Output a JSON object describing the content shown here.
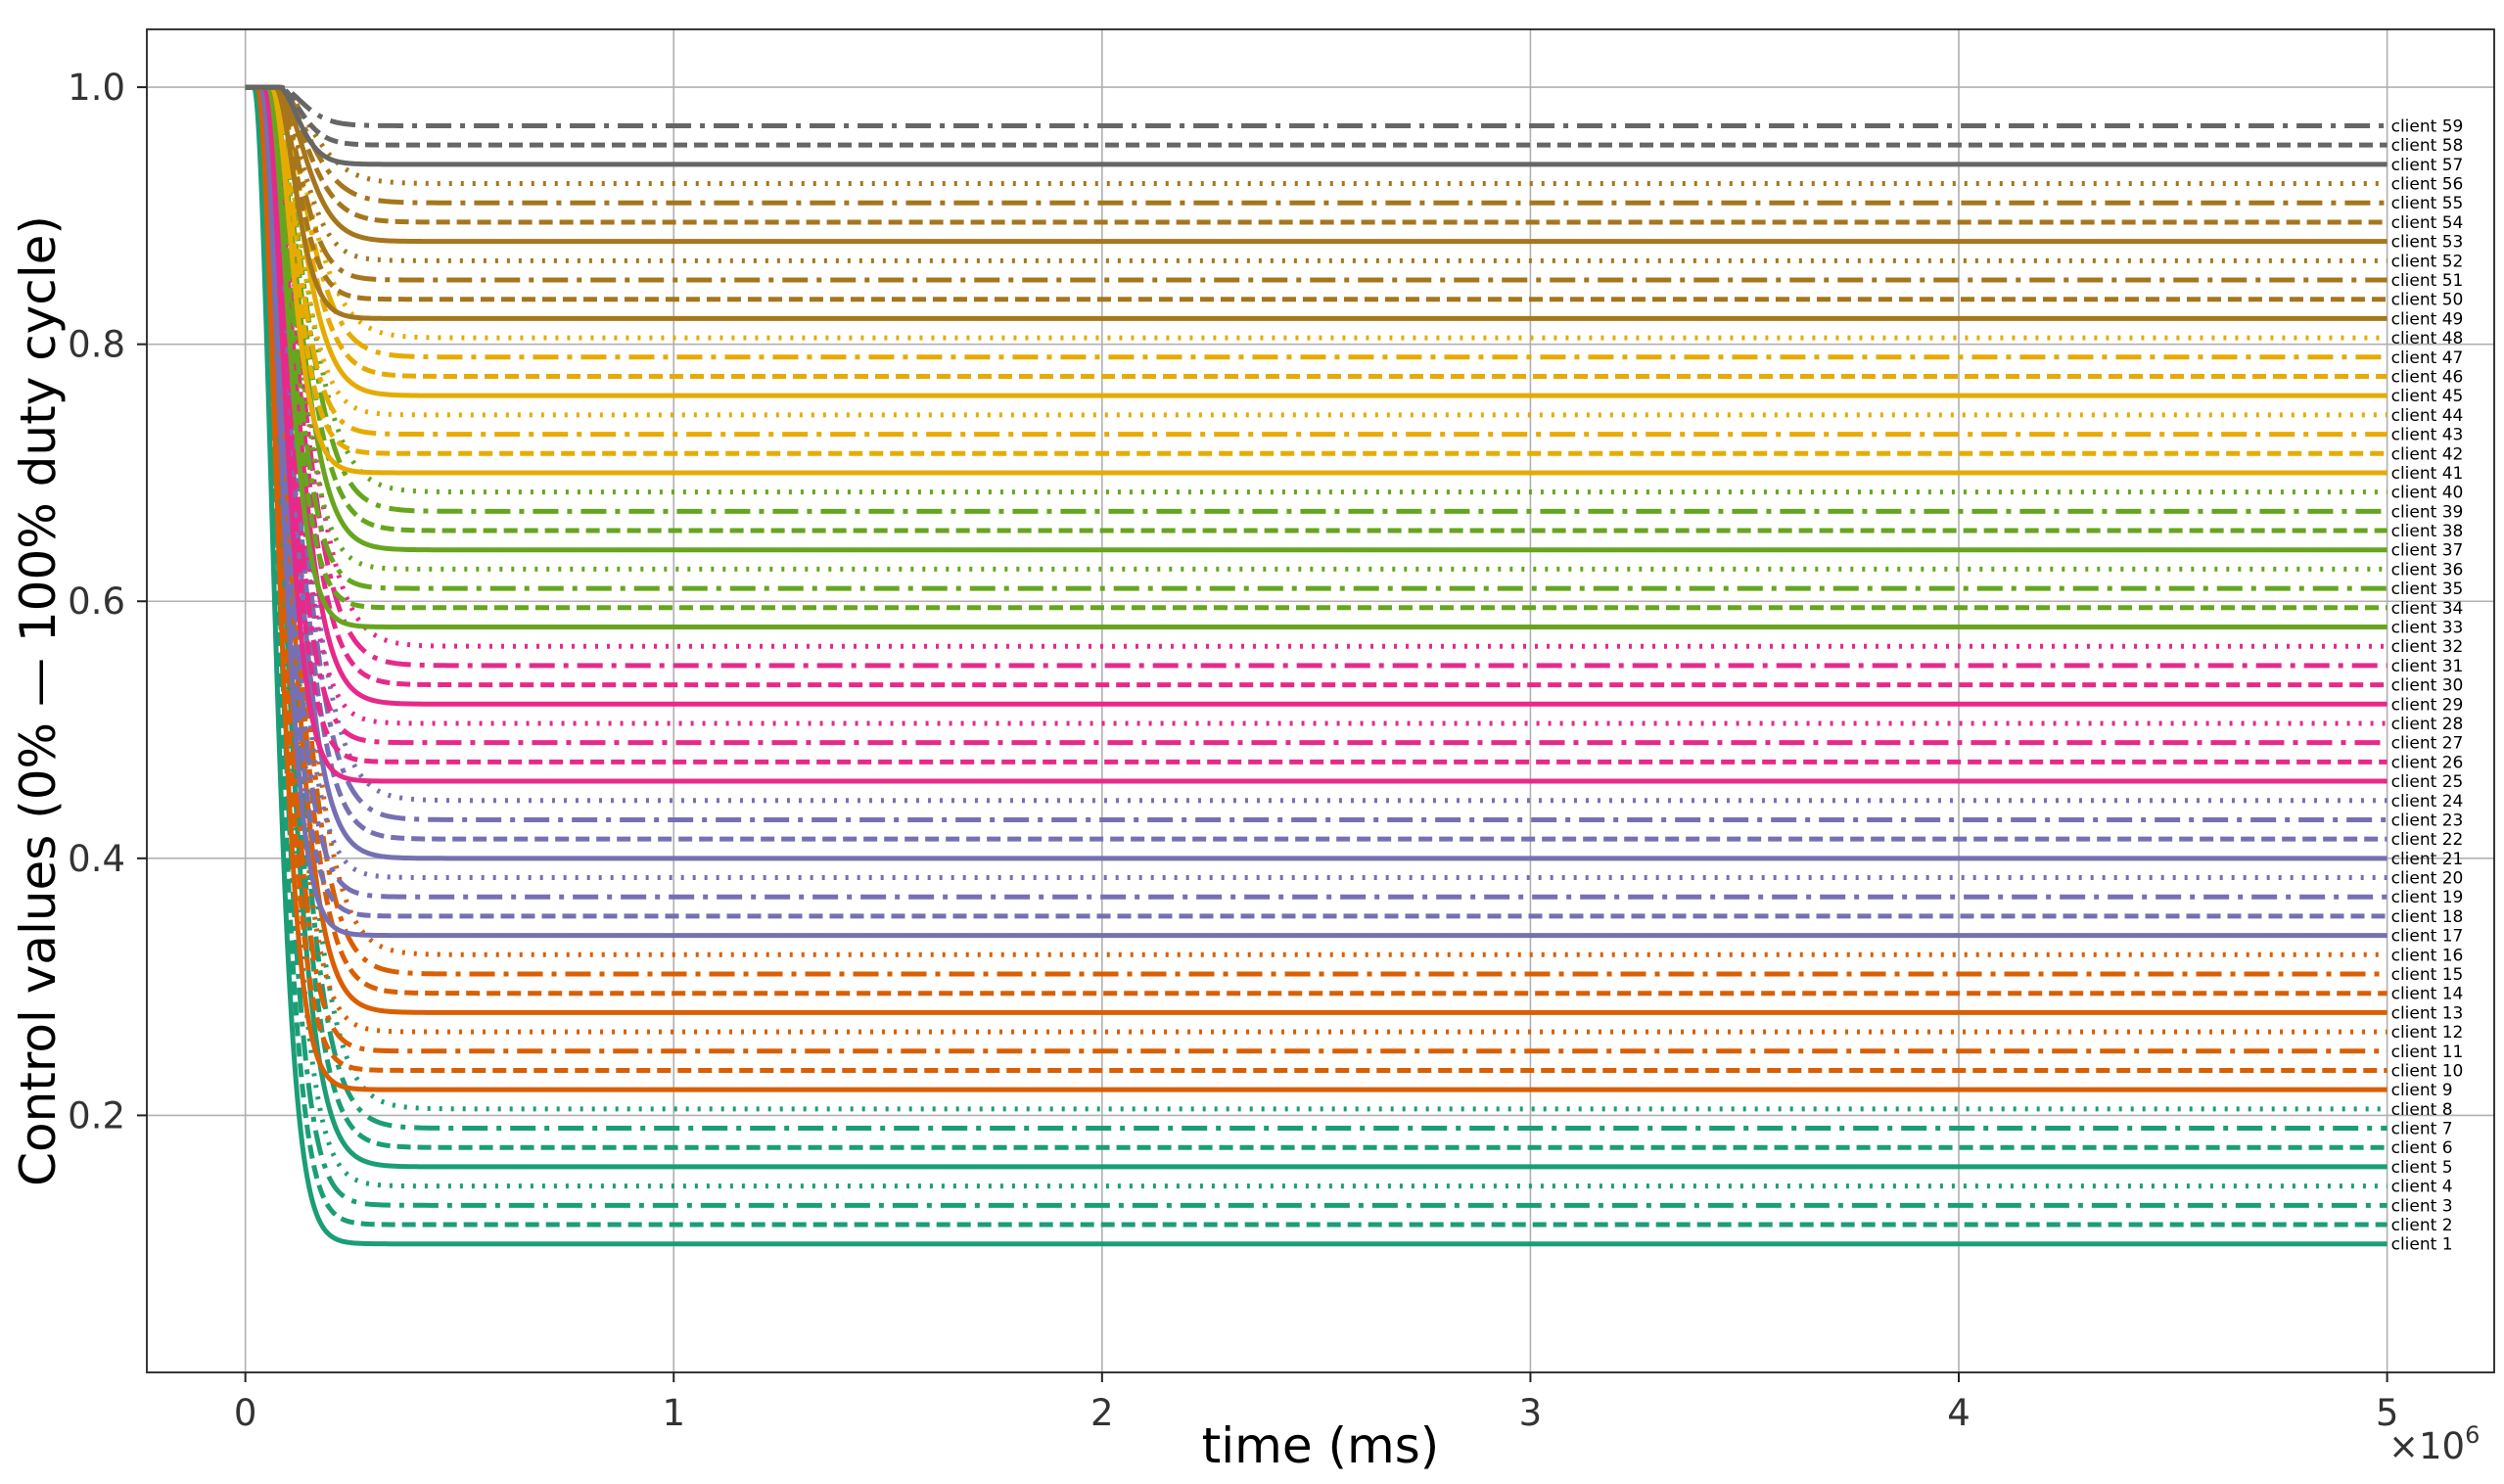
{
  "chart_data": {
    "type": "line",
    "xlabel": "time (ms)",
    "ylabel": "Control values (0% — 100% duty cycle)",
    "x_multiplier_label": "×10",
    "x_multiplier_exp": "6",
    "x_scale": 1000000,
    "xlim": [
      -0.23,
      5.25
    ],
    "ylim": [
      0.0,
      1.045
    ],
    "x_ticks": [
      0,
      1,
      2,
      3,
      4,
      5
    ],
    "x_tick_labels": [
      "0",
      "1",
      "2",
      "3",
      "4",
      "5"
    ],
    "y_ticks": [
      0.2,
      0.4,
      0.6,
      0.8,
      1.0
    ],
    "y_tick_labels": [
      "0.2",
      "0.4",
      "0.6",
      "0.8",
      "1.0"
    ],
    "grid": true,
    "initial_value": 1.0,
    "x_range": [
      0,
      5
    ],
    "group_colors": [
      "#1b9e77",
      "#d95f02",
      "#7570b3",
      "#e7298a",
      "#66a61e",
      "#e6ab02",
      "#a6761d",
      "#666666"
    ],
    "series": [
      {
        "name": "client 1",
        "final": 0.1
      },
      {
        "name": "client 2",
        "final": 0.115
      },
      {
        "name": "client 3",
        "final": 0.13
      },
      {
        "name": "client 4",
        "final": 0.145
      },
      {
        "name": "client 5",
        "final": 0.16
      },
      {
        "name": "client 6",
        "final": 0.175
      },
      {
        "name": "client 7",
        "final": 0.19
      },
      {
        "name": "client 8",
        "final": 0.205
      },
      {
        "name": "client 9",
        "final": 0.22
      },
      {
        "name": "client 10",
        "final": 0.235
      },
      {
        "name": "client 11",
        "final": 0.25
      },
      {
        "name": "client 12",
        "final": 0.265
      },
      {
        "name": "client 13",
        "final": 0.28
      },
      {
        "name": "client 14",
        "final": 0.295
      },
      {
        "name": "client 15",
        "final": 0.31
      },
      {
        "name": "client 16",
        "final": 0.325
      },
      {
        "name": "client 17",
        "final": 0.34
      },
      {
        "name": "client 18",
        "final": 0.355
      },
      {
        "name": "client 19",
        "final": 0.37
      },
      {
        "name": "client 20",
        "final": 0.385
      },
      {
        "name": "client 21",
        "final": 0.4
      },
      {
        "name": "client 22",
        "final": 0.415
      },
      {
        "name": "client 23",
        "final": 0.43
      },
      {
        "name": "client 24",
        "final": 0.445
      },
      {
        "name": "client 25",
        "final": 0.46
      },
      {
        "name": "client 26",
        "final": 0.475
      },
      {
        "name": "client 27",
        "final": 0.49
      },
      {
        "name": "client 28",
        "final": 0.505
      },
      {
        "name": "client 29",
        "final": 0.52
      },
      {
        "name": "client 30",
        "final": 0.535
      },
      {
        "name": "client 31",
        "final": 0.55
      },
      {
        "name": "client 32",
        "final": 0.565
      },
      {
        "name": "client 33",
        "final": 0.58
      },
      {
        "name": "client 34",
        "final": 0.595
      },
      {
        "name": "client 35",
        "final": 0.61
      },
      {
        "name": "client 36",
        "final": 0.625
      },
      {
        "name": "client 37",
        "final": 0.64
      },
      {
        "name": "client 38",
        "final": 0.655
      },
      {
        "name": "client 39",
        "final": 0.67
      },
      {
        "name": "client 40",
        "final": 0.685
      },
      {
        "name": "client 41",
        "final": 0.7
      },
      {
        "name": "client 42",
        "final": 0.715
      },
      {
        "name": "client 43",
        "final": 0.73
      },
      {
        "name": "client 44",
        "final": 0.745
      },
      {
        "name": "client 45",
        "final": 0.76
      },
      {
        "name": "client 46",
        "final": 0.775
      },
      {
        "name": "client 47",
        "final": 0.79
      },
      {
        "name": "client 48",
        "final": 0.805
      },
      {
        "name": "client 49",
        "final": 0.82
      },
      {
        "name": "client 50",
        "final": 0.835
      },
      {
        "name": "client 51",
        "final": 0.85
      },
      {
        "name": "client 52",
        "final": 0.865
      },
      {
        "name": "client 53",
        "final": 0.88
      },
      {
        "name": "client 54",
        "final": 0.895
      },
      {
        "name": "client 55",
        "final": 0.91
      },
      {
        "name": "client 56",
        "final": 0.925
      },
      {
        "name": "client 57",
        "final": 0.94
      },
      {
        "name": "client 58",
        "final": 0.955
      },
      {
        "name": "client 59",
        "final": 0.97
      }
    ]
  }
}
